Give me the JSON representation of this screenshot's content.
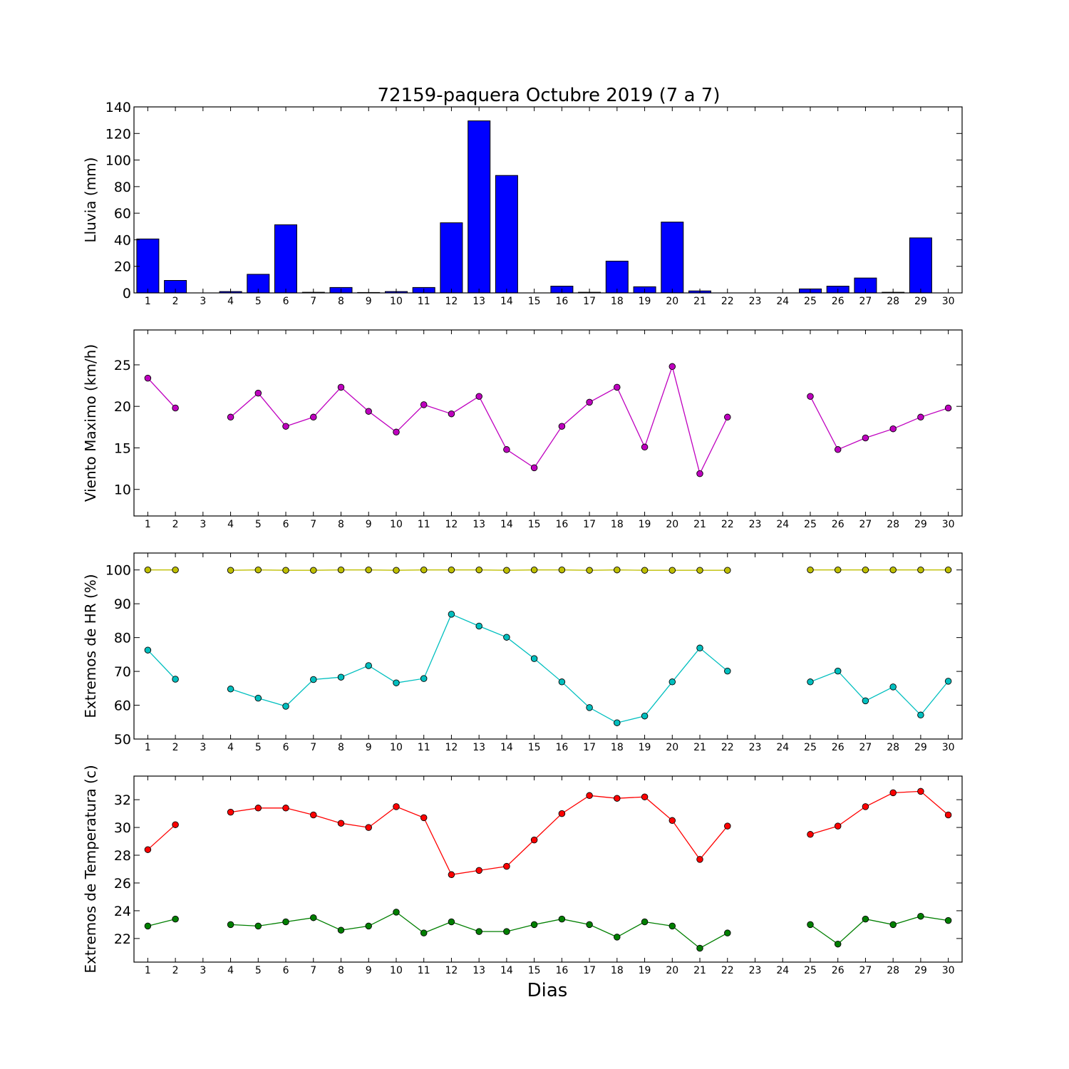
{
  "title": "72159-paquera Octubre 2019  (7 a 7)",
  "xlabel": "Dias",
  "chart_data": [
    {
      "type": "bar",
      "ylabel": "Lluvia (mm)",
      "ylim": [
        0,
        140
      ],
      "yticks": [
        0,
        20,
        40,
        60,
        80,
        100,
        120,
        140
      ],
      "color": "#0000ff",
      "x": [
        1,
        2,
        3,
        4,
        5,
        6,
        7,
        8,
        9,
        10,
        11,
        12,
        13,
        14,
        15,
        16,
        17,
        18,
        19,
        20,
        21,
        22,
        23,
        24,
        25,
        26,
        27,
        28,
        29,
        30
      ],
      "values": [
        40.6,
        9.4,
        0,
        1,
        14,
        51.3,
        0.5,
        4.1,
        0.3,
        1,
        4.1,
        52.8,
        129.5,
        88.4,
        0,
        5.1,
        0.5,
        23.9,
        4.6,
        53.3,
        1.5,
        0,
        0,
        0,
        3,
        5.1,
        11.2,
        0.5,
        41.4,
        0
      ]
    },
    {
      "type": "line",
      "ylabel": "Viento Maximo (km/h)",
      "ylim": [
        6.8,
        29.2
      ],
      "yticks": [
        10,
        15,
        20,
        25
      ],
      "series": [
        {
          "color": "#bf00bf",
          "x": [
            1,
            2,
            3,
            4,
            5,
            6,
            7,
            8,
            9,
            10,
            11,
            12,
            13,
            14,
            15,
            16,
            17,
            18,
            19,
            20,
            21,
            22,
            23,
            24,
            25,
            26,
            27,
            28,
            29,
            30
          ],
          "values": [
            23.4,
            19.8,
            null,
            18.7,
            21.6,
            17.6,
            18.7,
            22.3,
            19.4,
            16.9,
            20.2,
            19.1,
            21.2,
            14.8,
            12.6,
            17.6,
            20.5,
            22.3,
            15.1,
            24.8,
            11.9,
            18.7,
            null,
            null,
            21.2,
            14.8,
            16.2,
            17.3,
            18.7,
            19.8
          ]
        }
      ]
    },
    {
      "type": "line",
      "ylabel": "Extremos de HR (%)",
      "ylim": [
        50,
        105
      ],
      "yticks": [
        50,
        60,
        70,
        80,
        90,
        100
      ],
      "series": [
        {
          "color": "#bfbf00",
          "x": [
            1,
            2,
            3,
            4,
            5,
            6,
            7,
            8,
            9,
            10,
            11,
            12,
            13,
            14,
            15,
            16,
            17,
            18,
            19,
            20,
            21,
            22,
            23,
            24,
            25,
            26,
            27,
            28,
            29,
            30
          ],
          "values": [
            100,
            100,
            null,
            99.9,
            100,
            99.9,
            99.9,
            100,
            100,
            99.9,
            100,
            100,
            100,
            99.9,
            100,
            100,
            99.9,
            100,
            99.9,
            99.9,
            99.9,
            99.9,
            null,
            null,
            100,
            100,
            100,
            100,
            100,
            100
          ]
        },
        {
          "color": "#00bfbf",
          "x": [
            1,
            2,
            3,
            4,
            5,
            6,
            7,
            8,
            9,
            10,
            11,
            12,
            13,
            14,
            15,
            16,
            17,
            18,
            19,
            20,
            21,
            22,
            23,
            24,
            25,
            26,
            27,
            28,
            29,
            30
          ],
          "values": [
            76.3,
            67.7,
            null,
            64.8,
            62.1,
            59.7,
            67.6,
            68.3,
            71.7,
            66.6,
            67.9,
            86.9,
            83.4,
            80.1,
            73.8,
            66.9,
            59.3,
            54.8,
            56.8,
            66.9,
            76.9,
            70.1,
            null,
            null,
            66.9,
            70.1,
            61.3,
            65.4,
            57.1,
            67.1
          ]
        }
      ]
    },
    {
      "type": "line",
      "ylabel": "Extremos de Temperatura (c)",
      "ylim": [
        20.3,
        33.7
      ],
      "yticks": [
        22,
        24,
        26,
        28,
        30,
        32
      ],
      "series": [
        {
          "color": "#ff0000",
          "x": [
            1,
            2,
            3,
            4,
            5,
            6,
            7,
            8,
            9,
            10,
            11,
            12,
            13,
            14,
            15,
            16,
            17,
            18,
            19,
            20,
            21,
            22,
            23,
            24,
            25,
            26,
            27,
            28,
            29,
            30
          ],
          "values": [
            28.4,
            30.2,
            null,
            31.1,
            31.4,
            31.4,
            30.9,
            30.3,
            30,
            31.5,
            30.7,
            26.6,
            26.9,
            27.2,
            29.1,
            31,
            32.3,
            32.1,
            32.2,
            30.5,
            27.7,
            30.1,
            null,
            null,
            29.5,
            30.1,
            31.5,
            32.5,
            32.6,
            30.9
          ]
        },
        {
          "color": "#007f00",
          "x": [
            1,
            2,
            3,
            4,
            5,
            6,
            7,
            8,
            9,
            10,
            11,
            12,
            13,
            14,
            15,
            16,
            17,
            18,
            19,
            20,
            21,
            22,
            23,
            24,
            25,
            26,
            27,
            28,
            29,
            30
          ],
          "values": [
            22.9,
            23.4,
            null,
            23,
            22.9,
            23.2,
            23.5,
            22.6,
            22.9,
            23.9,
            22.4,
            23.2,
            22.5,
            22.5,
            23,
            23.4,
            23,
            22.1,
            23.2,
            22.9,
            21.3,
            22.4,
            null,
            null,
            23,
            21.6,
            23.4,
            23,
            23.6,
            23.3
          ]
        }
      ]
    }
  ]
}
